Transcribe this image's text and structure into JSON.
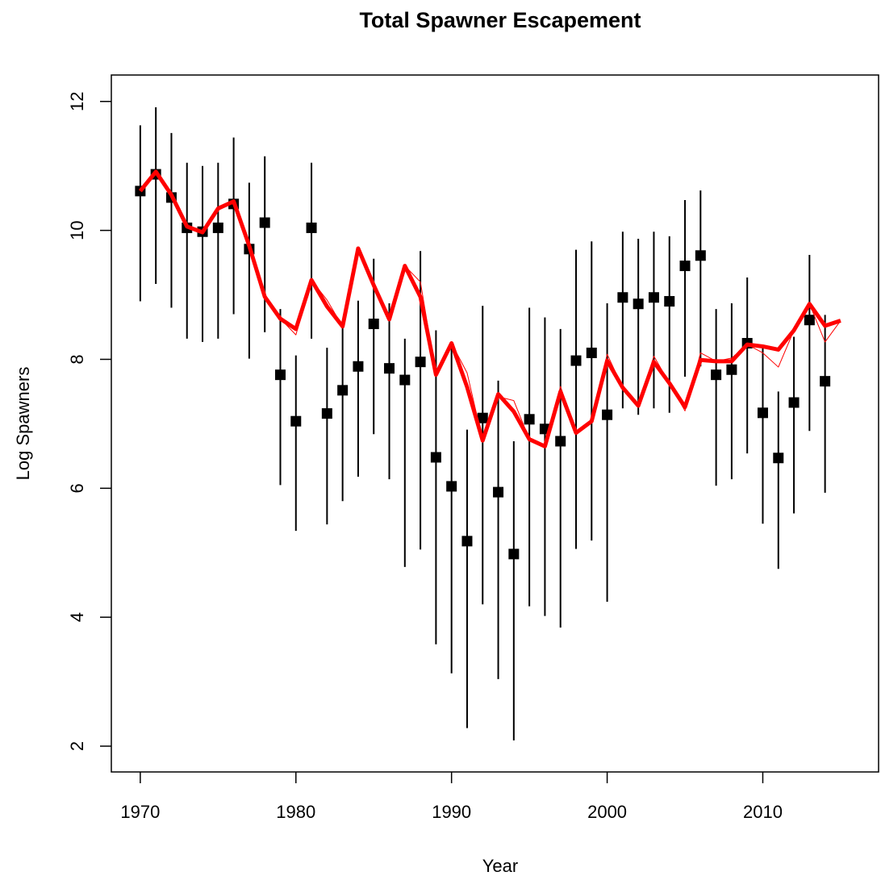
{
  "chart_data": {
    "type": "line",
    "title": "Total Spawner Escapement",
    "x_label": "Year",
    "y_label": "Log Spawners",
    "x": [
      1970,
      1971,
      1972,
      1973,
      1974,
      1975,
      1976,
      1977,
      1978,
      1979,
      1980,
      1981,
      1982,
      1983,
      1984,
      1985,
      1986,
      1987,
      1988,
      1989,
      1990,
      1991,
      1992,
      1993,
      1994,
      1995,
      1996,
      1997,
      1998,
      1999,
      2000,
      2001,
      2002,
      2003,
      2004,
      2005,
      2006,
      2007,
      2008,
      2009,
      2010,
      2011,
      2012,
      2013,
      2014,
      2015
    ],
    "xlim": [
      1968.14,
      2017.44
    ],
    "xticks": [
      1970,
      1980,
      1990,
      2000,
      2010
    ],
    "ylim": [
      1.6,
      12.41
    ],
    "yticks": [
      2,
      4,
      6,
      8,
      10,
      12
    ],
    "points": {
      "color": "#000000",
      "values": [
        10.61,
        10.87,
        10.51,
        10.04,
        9.98,
        10.04,
        10.41,
        9.71,
        10.12,
        7.76,
        7.04,
        10.04,
        7.16,
        7.52,
        7.89,
        8.55,
        7.86,
        7.68,
        7.96,
        6.48,
        6.03,
        5.18,
        7.09,
        5.94,
        4.98,
        7.07,
        6.92,
        6.73,
        7.98,
        8.1,
        7.14,
        8.96,
        8.86,
        8.96,
        8.9,
        9.45,
        9.61,
        7.76,
        7.84,
        8.25,
        7.17,
        6.47,
        7.33,
        8.61,
        7.66,
        null
      ],
      "upper": [
        11.63,
        11.91,
        11.51,
        11.05,
        11.0,
        11.05,
        11.44,
        10.74,
        11.15,
        8.78,
        8.06,
        11.05,
        8.18,
        8.53,
        8.91,
        9.56,
        8.87,
        8.32,
        9.68,
        8.45,
        8.2,
        6.91,
        8.83,
        7.67,
        6.73,
        8.8,
        8.65,
        8.47,
        9.7,
        9.83,
        8.87,
        9.98,
        9.87,
        9.98,
        9.91,
        10.47,
        10.62,
        8.78,
        8.87,
        9.27,
        8.2,
        7.5,
        8.35,
        9.62,
        8.69,
        null
      ],
      "lower": [
        8.9,
        9.17,
        8.8,
        8.32,
        8.27,
        8.32,
        8.7,
        8.01,
        8.42,
        6.05,
        5.34,
        8.32,
        5.44,
        5.8,
        6.18,
        6.84,
        6.14,
        4.78,
        5.05,
        3.58,
        3.13,
        2.28,
        4.2,
        3.04,
        2.09,
        4.17,
        4.02,
        3.84,
        5.06,
        5.19,
        4.24,
        7.24,
        7.14,
        7.24,
        7.17,
        7.73,
        7.89,
        6.04,
        6.14,
        6.54,
        5.45,
        4.75,
        5.61,
        6.89,
        5.93,
        null
      ]
    },
    "lines": [
      {
        "color": "#ff0000",
        "linewidth": 1,
        "values": [
          10.61,
          10.91,
          10.55,
          10.06,
          9.97,
          10.34,
          10.45,
          9.76,
          8.97,
          8.63,
          8.38,
          9.23,
          8.92,
          8.51,
          9.72,
          9.2,
          8.62,
          9.45,
          9.2,
          7.76,
          8.25,
          7.79,
          6.74,
          7.42,
          7.36,
          6.76,
          6.65,
          7.58,
          6.86,
          7.04,
          8.08,
          7.56,
          7.28,
          8.05,
          7.63,
          7.2,
          8.1,
          7.97,
          8.02,
          8.23,
          8.1,
          7.88,
          8.45,
          8.86,
          8.27,
          8.6
        ]
      },
      {
        "color": "#ff0000",
        "linewidth": 5,
        "values": [
          10.61,
          10.91,
          10.55,
          10.06,
          9.97,
          10.34,
          10.45,
          9.76,
          8.97,
          8.63,
          8.47,
          9.23,
          8.82,
          8.51,
          9.72,
          9.15,
          8.62,
          9.45,
          8.97,
          7.76,
          8.25,
          7.57,
          6.74,
          7.46,
          7.19,
          6.76,
          6.65,
          7.5,
          6.86,
          7.04,
          7.98,
          7.56,
          7.28,
          7.96,
          7.63,
          7.26,
          7.99,
          7.97,
          7.97,
          8.23,
          8.2,
          8.15,
          8.45,
          8.86,
          8.52,
          8.6
        ]
      }
    ]
  }
}
